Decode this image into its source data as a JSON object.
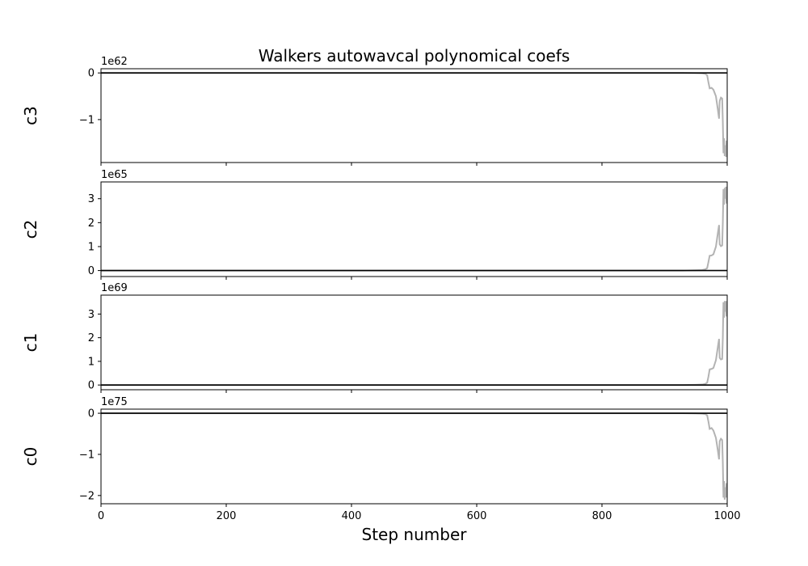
{
  "figure": {
    "title": "Walkers autowavcal polynomical coefs",
    "xlabel": "Step number"
  },
  "colors": {
    "walker_trace": "#b3b3b3",
    "baseline": "#000000",
    "axes": "#000000",
    "background": "#ffffff"
  },
  "chart_data": [
    {
      "type": "line",
      "ylabel": "c3",
      "offset_text": "1e62",
      "xlim": [
        0,
        1000
      ],
      "ylim": [
        -1.92,
        0.09
      ],
      "yticks": [
        0,
        -1
      ],
      "ytick_labels": [
        "0",
        "−1"
      ],
      "xticks": [
        0,
        200,
        400,
        600,
        800,
        1000
      ],
      "xtick_labels": [],
      "series": [
        {
          "x": [
            0,
            930,
            950,
            960,
            965,
            968,
            970,
            972,
            975,
            978,
            982,
            985,
            987,
            988,
            990,
            992,
            993,
            994,
            995,
            996,
            997,
            998,
            999,
            1000
          ],
          "values": [
            0,
            0,
            -0.005,
            -0.01,
            -0.02,
            -0.05,
            -0.2,
            -0.33,
            -0.32,
            -0.36,
            -0.5,
            -0.78,
            -0.98,
            -0.6,
            -0.53,
            -0.55,
            -1.05,
            -1.72,
            -1.4,
            -1.78,
            -1.55,
            -1.8,
            -1.45,
            -1.7
          ]
        },
        {
          "x": [
            0,
            1000
          ],
          "values": [
            0,
            0
          ]
        }
      ]
    },
    {
      "type": "line",
      "ylabel": "c2",
      "offset_text": "1e65",
      "xlim": [
        0,
        1000
      ],
      "ylim": [
        -0.25,
        3.7
      ],
      "yticks": [
        0,
        1,
        2,
        3
      ],
      "ytick_labels": [
        "0",
        "1",
        "2",
        "3"
      ],
      "xticks": [
        0,
        200,
        400,
        600,
        800,
        1000
      ],
      "xtick_labels": [],
      "series": [
        {
          "x": [
            0,
            930,
            950,
            960,
            965,
            968,
            970,
            972,
            975,
            978,
            982,
            985,
            987,
            988,
            990,
            992,
            993,
            994,
            995,
            996,
            997,
            998,
            999,
            1000
          ],
          "values": [
            0,
            0,
            0.01,
            0.02,
            0.05,
            0.1,
            0.35,
            0.62,
            0.63,
            0.68,
            1.0,
            1.55,
            1.9,
            1.1,
            1.02,
            1.05,
            2.0,
            3.4,
            2.75,
            3.45,
            3.0,
            3.5,
            2.8,
            3.3
          ]
        },
        {
          "x": [
            0,
            1000
          ],
          "values": [
            0,
            0
          ]
        }
      ]
    },
    {
      "type": "line",
      "ylabel": "c1",
      "offset_text": "1e69",
      "xlim": [
        0,
        1000
      ],
      "ylim": [
        -0.2,
        3.8
      ],
      "yticks": [
        0,
        1,
        2,
        3
      ],
      "ytick_labels": [
        "0",
        "1",
        "2",
        "3"
      ],
      "xticks": [
        0,
        200,
        400,
        600,
        800,
        1000
      ],
      "xtick_labels": [],
      "series": [
        {
          "x": [
            0,
            930,
            950,
            960,
            965,
            968,
            970,
            972,
            975,
            978,
            982,
            985,
            987,
            988,
            990,
            992,
            993,
            994,
            995,
            996,
            997,
            998,
            999,
            1000
          ],
          "values": [
            0,
            0,
            0.01,
            0.02,
            0.05,
            0.1,
            0.35,
            0.66,
            0.68,
            0.72,
            1.05,
            1.6,
            1.95,
            1.15,
            1.08,
            1.1,
            2.0,
            3.5,
            2.85,
            3.55,
            3.1,
            3.55,
            2.9,
            3.4
          ]
        },
        {
          "x": [
            0,
            1000
          ],
          "values": [
            0,
            0
          ]
        }
      ]
    },
    {
      "type": "line",
      "ylabel": "c0",
      "offset_text": "1e75",
      "xlim": [
        0,
        1000
      ],
      "ylim": [
        -2.2,
        0.1
      ],
      "yticks": [
        0,
        -1,
        -2
      ],
      "ytick_labels": [
        "0",
        "−1",
        "−2"
      ],
      "xticks": [
        0,
        200,
        400,
        600,
        800,
        1000
      ],
      "xtick_labels": [
        "0",
        "200",
        "400",
        "600",
        "800",
        "1000"
      ],
      "series": [
        {
          "x": [
            0,
            930,
            950,
            960,
            965,
            968,
            970,
            972,
            975,
            978,
            982,
            985,
            987,
            988,
            990,
            992,
            993,
            994,
            995,
            996,
            997,
            998,
            999,
            1000
          ],
          "values": [
            0,
            0,
            -0.005,
            -0.01,
            -0.02,
            -0.05,
            -0.2,
            -0.38,
            -0.36,
            -0.42,
            -0.6,
            -0.9,
            -1.12,
            -0.68,
            -0.62,
            -0.65,
            -1.2,
            -2.05,
            -1.65,
            -2.1,
            -1.8,
            -2.05,
            -1.7,
            -1.95
          ]
        },
        {
          "x": [
            0,
            1000
          ],
          "values": [
            0,
            0
          ]
        }
      ]
    }
  ]
}
